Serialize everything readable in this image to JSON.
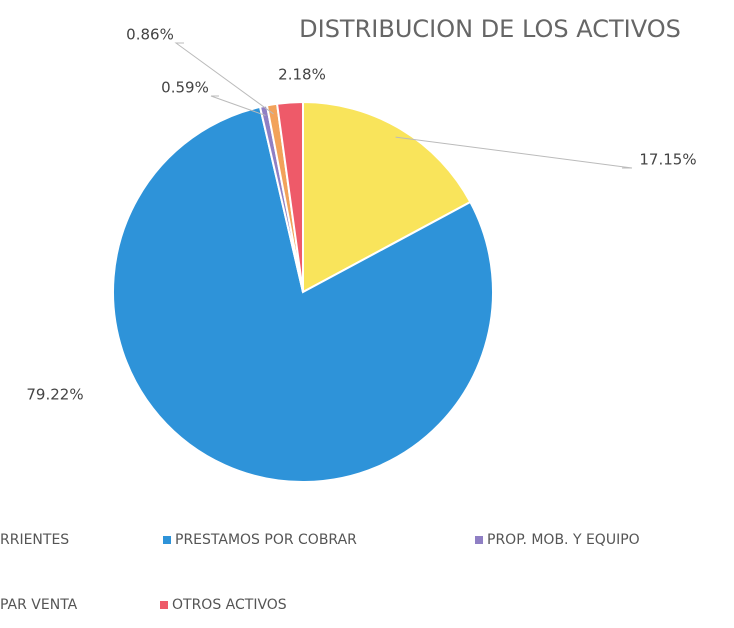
{
  "chart_data": {
    "type": "pie",
    "title": "DISTRIBUCION DE LOS ACTIVOS",
    "categories": [
      "RRIENTES",
      "PRESTAMOS POR COBRAR",
      "PROP. MOB. Y EQUIPO",
      "PAR VENTA",
      "OTROS ACTIVOS"
    ],
    "values": [
      17.15,
      79.22,
      0.59,
      0.86,
      2.18
    ],
    "value_labels": [
      "17.15%",
      "79.22%",
      "0.59%",
      "0.86%",
      "2.18%"
    ],
    "colors": [
      "#f9e45b",
      "#2e93d9",
      "#8f7fc4",
      "#f2a25a",
      "#ee5a69"
    ]
  }
}
